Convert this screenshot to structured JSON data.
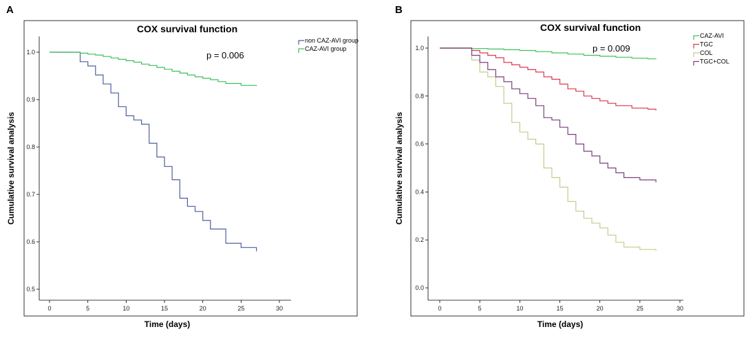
{
  "chart_data": [
    {
      "type": "line",
      "panel": "A",
      "title": "COX survival function",
      "xlabel": "Time (days)",
      "ylabel": "Cumulative survival analysis",
      "xlim": [
        0,
        30
      ],
      "ylim": [
        0.5,
        1.0
      ],
      "xticks": [
        0,
        5,
        10,
        15,
        20,
        25,
        30
      ],
      "yticks": [
        0.5,
        0.6,
        0.7,
        0.8,
        0.9,
        1.0
      ],
      "ytick_labels": [
        "0.5",
        "0.6",
        "0.7",
        "0.8",
        "0.9",
        "1.0"
      ],
      "annotation": "p = 0.006",
      "series": [
        {
          "name": "non CAZ-AVI group",
          "color": "#4d5f9f",
          "points": [
            [
              0,
              1.0
            ],
            [
              4,
              1.0
            ],
            [
              4,
              0.98
            ],
            [
              5,
              0.98
            ],
            [
              5,
              0.971
            ],
            [
              6,
              0.971
            ],
            [
              6,
              0.952
            ],
            [
              7,
              0.952
            ],
            [
              7,
              0.933
            ],
            [
              8,
              0.933
            ],
            [
              8,
              0.914
            ],
            [
              9,
              0.914
            ],
            [
              9,
              0.885
            ],
            [
              10,
              0.885
            ],
            [
              10,
              0.866
            ],
            [
              11,
              0.866
            ],
            [
              11,
              0.857
            ],
            [
              12,
              0.857
            ],
            [
              12,
              0.848
            ],
            [
              13,
              0.848
            ],
            [
              13,
              0.808
            ],
            [
              14,
              0.808
            ],
            [
              14,
              0.779
            ],
            [
              15,
              0.779
            ],
            [
              15,
              0.759
            ],
            [
              16,
              0.759
            ],
            [
              16,
              0.731
            ],
            [
              17,
              0.731
            ],
            [
              17,
              0.692
            ],
            [
              18,
              0.692
            ],
            [
              18,
              0.675
            ],
            [
              19,
              0.675
            ],
            [
              19,
              0.664
            ],
            [
              20,
              0.664
            ],
            [
              20,
              0.645
            ],
            [
              21,
              0.645
            ],
            [
              21,
              0.627
            ],
            [
              23,
              0.627
            ],
            [
              23,
              0.597
            ],
            [
              25,
              0.597
            ],
            [
              25,
              0.588
            ],
            [
              27,
              0.588
            ],
            [
              27,
              0.58
            ]
          ]
        },
        {
          "name": "CAZ-AVI group",
          "color": "#3cbf5a",
          "points": [
            [
              0,
              1.0
            ],
            [
              4,
              1.0
            ],
            [
              4,
              0.998
            ],
            [
              5,
              0.998
            ],
            [
              5,
              0.996
            ],
            [
              6,
              0.996
            ],
            [
              6,
              0.994
            ],
            [
              7,
              0.994
            ],
            [
              7,
              0.991
            ],
            [
              8,
              0.991
            ],
            [
              8,
              0.988
            ],
            [
              9,
              0.988
            ],
            [
              9,
              0.985
            ],
            [
              10,
              0.985
            ],
            [
              10,
              0.982
            ],
            [
              11,
              0.982
            ],
            [
              11,
              0.979
            ],
            [
              12,
              0.979
            ],
            [
              12,
              0.975
            ],
            [
              13,
              0.975
            ],
            [
              13,
              0.972
            ],
            [
              14,
              0.972
            ],
            [
              14,
              0.968
            ],
            [
              15,
              0.968
            ],
            [
              15,
              0.964
            ],
            [
              16,
              0.964
            ],
            [
              16,
              0.96
            ],
            [
              17,
              0.96
            ],
            [
              17,
              0.956
            ],
            [
              18,
              0.956
            ],
            [
              18,
              0.952
            ],
            [
              19,
              0.952
            ],
            [
              19,
              0.948
            ],
            [
              20,
              0.948
            ],
            [
              20,
              0.945
            ],
            [
              21,
              0.945
            ],
            [
              21,
              0.942
            ],
            [
              22,
              0.942
            ],
            [
              22,
              0.938
            ],
            [
              23,
              0.938
            ],
            [
              23,
              0.934
            ],
            [
              25,
              0.934
            ],
            [
              25,
              0.93
            ],
            [
              27,
              0.93
            ],
            [
              27,
              0.929
            ]
          ]
        }
      ],
      "legend": {
        "position": "right"
      }
    },
    {
      "type": "line",
      "panel": "B",
      "title": "COX survival function",
      "xlabel": "Time (days)",
      "ylabel": "Cumulative survival analysis",
      "xlim": [
        0,
        30
      ],
      "ylim": [
        0.0,
        1.0
      ],
      "xticks": [
        0,
        5,
        10,
        15,
        20,
        25,
        30
      ],
      "yticks": [
        0.0,
        0.2,
        0.4,
        0.6,
        0.8,
        1.0
      ],
      "ytick_labels": [
        "0.0",
        "0.2",
        "0.4",
        "0.6",
        "0.8",
        "1.0"
      ],
      "annotation": "p = 0.009",
      "series": [
        {
          "name": "CAZ-AVI",
          "color": "#3cbf5a",
          "points": [
            [
              0,
              1.0
            ],
            [
              4,
              1.0
            ],
            [
              4,
              0.998
            ],
            [
              6,
              0.998
            ],
            [
              6,
              0.996
            ],
            [
              8,
              0.996
            ],
            [
              8,
              0.993
            ],
            [
              10,
              0.993
            ],
            [
              10,
              0.99
            ],
            [
              12,
              0.99
            ],
            [
              12,
              0.985
            ],
            [
              14,
              0.985
            ],
            [
              14,
              0.98
            ],
            [
              16,
              0.98
            ],
            [
              16,
              0.975
            ],
            [
              18,
              0.975
            ],
            [
              18,
              0.97
            ],
            [
              20,
              0.97
            ],
            [
              20,
              0.966
            ],
            [
              22,
              0.966
            ],
            [
              22,
              0.962
            ],
            [
              24,
              0.962
            ],
            [
              24,
              0.958
            ],
            [
              26,
              0.958
            ],
            [
              26,
              0.955
            ],
            [
              27,
              0.955
            ],
            [
              27,
              0.954
            ]
          ]
        },
        {
          "name": "TGC",
          "color": "#d63a4e",
          "points": [
            [
              0,
              1.0
            ],
            [
              4,
              1.0
            ],
            [
              4,
              0.99
            ],
            [
              5,
              0.99
            ],
            [
              5,
              0.98
            ],
            [
              6,
              0.98
            ],
            [
              6,
              0.97
            ],
            [
              7,
              0.97
            ],
            [
              7,
              0.96
            ],
            [
              8,
              0.96
            ],
            [
              8,
              0.94
            ],
            [
              9,
              0.94
            ],
            [
              9,
              0.93
            ],
            [
              10,
              0.93
            ],
            [
              10,
              0.92
            ],
            [
              11,
              0.92
            ],
            [
              11,
              0.91
            ],
            [
              12,
              0.91
            ],
            [
              12,
              0.9
            ],
            [
              13,
              0.9
            ],
            [
              13,
              0.88
            ],
            [
              14,
              0.88
            ],
            [
              14,
              0.87
            ],
            [
              15,
              0.87
            ],
            [
              15,
              0.85
            ],
            [
              16,
              0.85
            ],
            [
              16,
              0.83
            ],
            [
              17,
              0.83
            ],
            [
              17,
              0.82
            ],
            [
              18,
              0.82
            ],
            [
              18,
              0.8
            ],
            [
              19,
              0.8
            ],
            [
              19,
              0.79
            ],
            [
              20,
              0.79
            ],
            [
              20,
              0.78
            ],
            [
              21,
              0.78
            ],
            [
              21,
              0.77
            ],
            [
              22,
              0.77
            ],
            [
              22,
              0.76
            ],
            [
              24,
              0.76
            ],
            [
              24,
              0.75
            ],
            [
              26,
              0.75
            ],
            [
              26,
              0.745
            ],
            [
              27,
              0.745
            ],
            [
              27,
              0.74
            ]
          ]
        },
        {
          "name": "COL",
          "color": "#c3cc8a",
          "points": [
            [
              0,
              1.0
            ],
            [
              4,
              1.0
            ],
            [
              4,
              0.95
            ],
            [
              5,
              0.95
            ],
            [
              5,
              0.9
            ],
            [
              6,
              0.9
            ],
            [
              6,
              0.88
            ],
            [
              7,
              0.88
            ],
            [
              7,
              0.84
            ],
            [
              8,
              0.84
            ],
            [
              8,
              0.77
            ],
            [
              9,
              0.77
            ],
            [
              9,
              0.69
            ],
            [
              10,
              0.69
            ],
            [
              10,
              0.65
            ],
            [
              11,
              0.65
            ],
            [
              11,
              0.62
            ],
            [
              12,
              0.62
            ],
            [
              12,
              0.6
            ],
            [
              13,
              0.6
            ],
            [
              13,
              0.5
            ],
            [
              14,
              0.5
            ],
            [
              14,
              0.46
            ],
            [
              15,
              0.46
            ],
            [
              15,
              0.42
            ],
            [
              16,
              0.42
            ],
            [
              16,
              0.36
            ],
            [
              17,
              0.36
            ],
            [
              17,
              0.32
            ],
            [
              18,
              0.32
            ],
            [
              18,
              0.29
            ],
            [
              19,
              0.29
            ],
            [
              19,
              0.27
            ],
            [
              20,
              0.27
            ],
            [
              20,
              0.25
            ],
            [
              21,
              0.25
            ],
            [
              21,
              0.22
            ],
            [
              22,
              0.22
            ],
            [
              22,
              0.19
            ],
            [
              23,
              0.19
            ],
            [
              23,
              0.17
            ],
            [
              25,
              0.17
            ],
            [
              25,
              0.16
            ],
            [
              27,
              0.16
            ],
            [
              27,
              0.155
            ]
          ]
        },
        {
          "name": "TGC+COL",
          "color": "#7b3f7d",
          "points": [
            [
              0,
              1.0
            ],
            [
              4,
              1.0
            ],
            [
              4,
              0.97
            ],
            [
              5,
              0.97
            ],
            [
              5,
              0.94
            ],
            [
              6,
              0.94
            ],
            [
              6,
              0.91
            ],
            [
              7,
              0.91
            ],
            [
              7,
              0.88
            ],
            [
              8,
              0.88
            ],
            [
              8,
              0.86
            ],
            [
              9,
              0.86
            ],
            [
              9,
              0.83
            ],
            [
              10,
              0.83
            ],
            [
              10,
              0.81
            ],
            [
              11,
              0.81
            ],
            [
              11,
              0.79
            ],
            [
              12,
              0.79
            ],
            [
              12,
              0.76
            ],
            [
              13,
              0.76
            ],
            [
              13,
              0.71
            ],
            [
              14,
              0.71
            ],
            [
              14,
              0.7
            ],
            [
              15,
              0.7
            ],
            [
              15,
              0.67
            ],
            [
              16,
              0.67
            ],
            [
              16,
              0.64
            ],
            [
              17,
              0.64
            ],
            [
              17,
              0.6
            ],
            [
              18,
              0.6
            ],
            [
              18,
              0.57
            ],
            [
              19,
              0.57
            ],
            [
              19,
              0.55
            ],
            [
              20,
              0.55
            ],
            [
              20,
              0.52
            ],
            [
              21,
              0.52
            ],
            [
              21,
              0.5
            ],
            [
              22,
              0.5
            ],
            [
              22,
              0.48
            ],
            [
              23,
              0.48
            ],
            [
              23,
              0.46
            ],
            [
              25,
              0.46
            ],
            [
              25,
              0.45
            ],
            [
              27,
              0.45
            ],
            [
              27,
              0.44
            ]
          ]
        }
      ],
      "legend": {
        "position": "right"
      }
    }
  ]
}
